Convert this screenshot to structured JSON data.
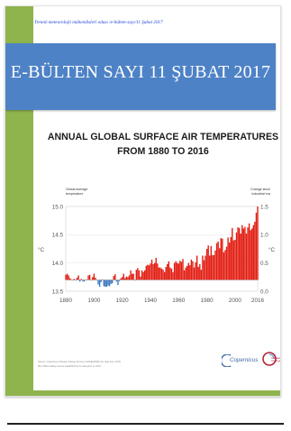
{
  "header": {
    "topline": "Trennö meteorolojii mühendisleri odası /e-bülten-sayı/11 Şubat 2017"
  },
  "banner": {
    "title": "E-BÜLTEN SAYI 11 ŞUBAT 2017",
    "color": "#4e82c6"
  },
  "accent_color": "#8fb44d",
  "chart_data": {
    "type": "bar",
    "title_line1": "ANNUAL GLOBAL SURFACE AIR TEMPERATURES",
    "title_line2": "FROM 1880 TO 2016",
    "left_axis_label_line1": "Global average",
    "left_axis_label_line2": "temperature",
    "right_axis_label_line1": "Change since",
    "right_axis_label_line2": "industrial era",
    "left_unit": "°C",
    "right_unit": "°C",
    "baseline": 13.7,
    "ylim": [
      13.5,
      15.0
    ],
    "y_ticks_left": [
      "15.0",
      "14.5",
      "14.0",
      "13.5"
    ],
    "y_ticks_right": [
      "1.5",
      "1.0",
      "0.5",
      "0.0"
    ],
    "x_ticks": [
      "1880",
      "1900",
      "1920",
      "1940",
      "1960",
      "1980",
      "2000",
      "2016"
    ],
    "xlim": [
      1880,
      2016
    ],
    "warm_color": "#e21d12",
    "cool_color": "#3b79c3",
    "years": [
      1880,
      1881,
      1882,
      1883,
      1884,
      1885,
      1886,
      1887,
      1888,
      1889,
      1890,
      1891,
      1892,
      1893,
      1894,
      1895,
      1896,
      1897,
      1898,
      1899,
      1900,
      1901,
      1902,
      1903,
      1904,
      1905,
      1906,
      1907,
      1908,
      1909,
      1910,
      1911,
      1912,
      1913,
      1914,
      1915,
      1916,
      1917,
      1918,
      1919,
      1920,
      1921,
      1922,
      1923,
      1924,
      1925,
      1926,
      1927,
      1928,
      1929,
      1930,
      1931,
      1932,
      1933,
      1934,
      1935,
      1936,
      1937,
      1938,
      1939,
      1940,
      1941,
      1942,
      1943,
      1944,
      1945,
      1946,
      1947,
      1948,
      1949,
      1950,
      1951,
      1952,
      1953,
      1954,
      1955,
      1956,
      1957,
      1958,
      1959,
      1960,
      1961,
      1962,
      1963,
      1964,
      1965,
      1966,
      1967,
      1968,
      1969,
      1970,
      1971,
      1972,
      1973,
      1974,
      1975,
      1976,
      1977,
      1978,
      1979,
      1980,
      1981,
      1982,
      1983,
      1984,
      1985,
      1986,
      1987,
      1988,
      1989,
      1990,
      1991,
      1992,
      1993,
      1994,
      1995,
      1996,
      1997,
      1998,
      1999,
      2000,
      2001,
      2002,
      2003,
      2004,
      2005,
      2006,
      2007,
      2008,
      2009,
      2010,
      2011,
      2012,
      2013,
      2014,
      2015,
      2016
    ],
    "values": [
      13.79,
      13.81,
      13.78,
      13.73,
      13.71,
      13.7,
      13.72,
      13.69,
      13.74,
      13.78,
      13.67,
      13.72,
      13.68,
      13.67,
      13.7,
      13.71,
      13.78,
      13.79,
      13.69,
      13.75,
      13.81,
      13.74,
      13.69,
      13.62,
      13.58,
      13.66,
      13.71,
      13.59,
      13.58,
      13.58,
      13.6,
      13.59,
      13.63,
      13.64,
      13.77,
      13.8,
      13.67,
      13.61,
      13.68,
      13.73,
      13.75,
      13.81,
      13.73,
      13.76,
      13.75,
      13.78,
      13.87,
      13.81,
      13.81,
      13.69,
      13.88,
      13.91,
      13.87,
      13.76,
      13.87,
      13.84,
      13.87,
      13.95,
      13.97,
      13.96,
      13.99,
      14.06,
      13.98,
      14.0,
      14.09,
      13.99,
      13.92,
      13.92,
      13.9,
      13.88,
      13.84,
      13.93,
      13.98,
      14.03,
      13.92,
      13.9,
      13.84,
      14.0,
      14.03,
      14.0,
      13.99,
      14.04,
      14.02,
      14.07,
      13.87,
      13.92,
      13.95,
      14.0,
      13.96,
      14.06,
      14.03,
      13.92,
      14.01,
      14.13,
      13.93,
      13.98,
      13.88,
      14.13,
      14.05,
      14.13,
      14.25,
      14.31,
      14.13,
      14.3,
      14.14,
      14.14,
      14.22,
      14.35,
      14.38,
      14.26,
      14.44,
      14.43,
      14.19,
      14.23,
      14.29,
      14.45,
      14.36,
      14.46,
      14.62,
      14.4,
      14.41,
      14.54,
      14.63,
      14.62,
      14.52,
      14.67,
      14.61,
      14.64,
      14.52,
      14.63,
      14.7,
      14.58,
      14.61,
      14.67,
      14.73,
      14.89,
      15.0
    ]
  },
  "footnotes": {
    "line1": "Source: Copernicus Climate Change Service (C3S/ECMWF) for data from 1979;",
    "line2": "Met Office Hadley Centre (HadCRUT4) for data prior to 1979."
  },
  "logos": {
    "copernicus_text": "Copernicus",
    "eu_text_line1": "Climate",
    "eu_text_line2": "Change"
  }
}
